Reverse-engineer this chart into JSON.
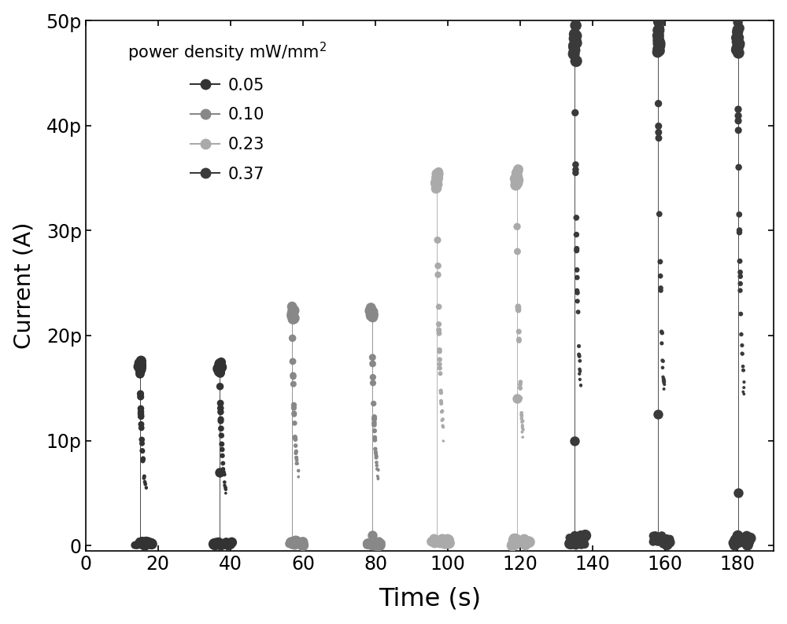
{
  "xlabel": "Time (s)",
  "ylabel": "Current (A)",
  "xlim": [
    0,
    190
  ],
  "ylim": [
    -5e-13,
    5e-11
  ],
  "xticks": [
    0,
    20,
    40,
    60,
    80,
    100,
    120,
    140,
    160,
    180
  ],
  "ytick_labels": [
    "0",
    "10p",
    "20p",
    "30p",
    "40p",
    "50p"
  ],
  "ytick_values": [
    0,
    1e-11,
    2e-11,
    3e-11,
    4e-11,
    5e-11
  ],
  "legend_title": "power density mW/mm$^2$",
  "series": [
    {
      "label": "0.05",
      "color": "#333333",
      "peak_current": 1.7e-11,
      "pulses": [
        {
          "t_on": 15,
          "t_off": 20,
          "isolated_dot": null
        },
        {
          "t_on": 37,
          "t_off": 42,
          "isolated_dot": 7e-12
        }
      ]
    },
    {
      "label": "0.10",
      "color": "#888888",
      "peak_current": 2.2e-11,
      "pulses": [
        {
          "t_on": 57,
          "t_off": 62,
          "isolated_dot": null
        },
        {
          "t_on": 79,
          "t_off": 84,
          "isolated_dot": 1e-12
        }
      ]
    },
    {
      "label": "0.23",
      "color": "#aaaaaa",
      "peak_current": 3.5e-11,
      "pulses": [
        {
          "t_on": 97,
          "t_off": 102,
          "isolated_dot": null
        },
        {
          "t_on": 119,
          "t_off": 124,
          "isolated_dot": 1.4e-11
        }
      ]
    },
    {
      "label": "0.37",
      "color": "#3a3a3a",
      "peak_current": 4.8e-11,
      "pulses": [
        {
          "t_on": 135,
          "t_off": 140,
          "isolated_dot": 1e-11
        },
        {
          "t_on": 158,
          "t_off": 163,
          "isolated_dot": 1.25e-11
        },
        {
          "t_on": 180,
          "t_off": 185,
          "isolated_dot": 5e-12
        }
      ]
    }
  ]
}
